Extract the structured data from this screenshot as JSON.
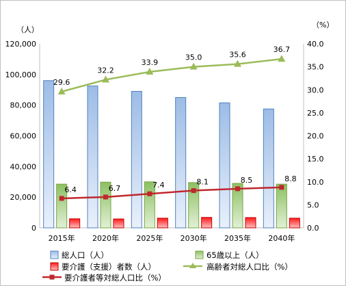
{
  "chart_data": {
    "type": "bar",
    "categories": [
      "2015年",
      "2020年",
      "2025年",
      "2030年",
      "2035年",
      "2040年"
    ],
    "y_left_unit": "（人）",
    "y_right_unit": "（%）",
    "y_left_ticks": [
      "0",
      "20,000",
      "40,000",
      "60,000",
      "80,000",
      "100,000",
      "120,000"
    ],
    "y_right_ticks": [
      "0.0",
      "5.0",
      "10.0",
      "15.0",
      "20.0",
      "25.0",
      "30.0",
      "35.0",
      "40.0"
    ],
    "ylim_left": [
      0,
      120000
    ],
    "ylim_right": [
      0,
      40
    ],
    "series": [
      {
        "name": "総人口（人）",
        "type": "bar",
        "axis": "left",
        "color": "#4f81bd",
        "values": [
          96000,
          92500,
          89000,
          85000,
          81500,
          77500
        ]
      },
      {
        "name": "65歳以上（人）",
        "type": "bar",
        "axis": "left",
        "color": "#77a541",
        "values": [
          28500,
          29800,
          30000,
          29500,
          29000,
          28500
        ]
      },
      {
        "name": "要介護（支援）者数（人）",
        "type": "bar",
        "axis": "left",
        "color": "#e02020",
        "values": [
          5900,
          5800,
          6300,
          6800,
          6700,
          6300
        ]
      },
      {
        "name": "高齢者対総人口比（%）",
        "type": "line",
        "axis": "right",
        "color": "#9bbb59",
        "values": [
          29.6,
          32.2,
          33.9,
          35.0,
          35.6,
          36.7
        ],
        "labels": [
          "29.6",
          "32.2",
          "33.9",
          "35.0",
          "35.6",
          "36.7"
        ]
      },
      {
        "name": "要介護者等対総人口比（%）",
        "type": "line",
        "axis": "right",
        "color": "#c0272d",
        "values": [
          6.4,
          6.7,
          7.4,
          8.1,
          8.5,
          8.8
        ],
        "labels": [
          "6.4",
          "6.7",
          "7.4",
          "8.1",
          "8.5",
          "8.8"
        ]
      }
    ],
    "grid": false,
    "legend_position": "bottom"
  }
}
